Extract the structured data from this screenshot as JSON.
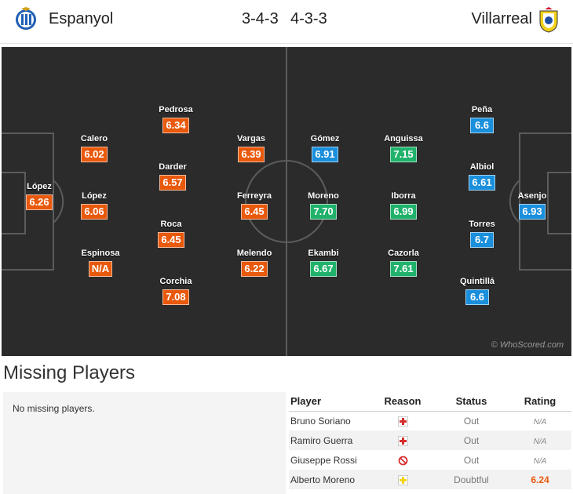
{
  "header": {
    "home_team": "Espanyol",
    "away_team": "Villarreal",
    "home_formation": "3-4-3",
    "away_formation": "4-3-3"
  },
  "pitch": {
    "watermark": "© WhoScored.com",
    "colors": {
      "home_rating": "#e8590c",
      "away_rating": "#1a8fdc",
      "top_rating": "#20b26b",
      "pitch": "#2b2b2b"
    },
    "home_players": [
      {
        "name": "López",
        "rating": "6.26"
      },
      {
        "name": "Calero",
        "rating": "6.02"
      },
      {
        "name": "López",
        "rating": "6.06"
      },
      {
        "name": "Espinosa",
        "rating": "N/A"
      },
      {
        "name": "Pedrosa",
        "rating": "6.34"
      },
      {
        "name": "Darder",
        "rating": "6.57"
      },
      {
        "name": "Roca",
        "rating": "6.45"
      },
      {
        "name": "Corchia",
        "rating": "7.08"
      },
      {
        "name": "Vargas",
        "rating": "6.39"
      },
      {
        "name": "Ferreyra",
        "rating": "6.45"
      },
      {
        "name": "Melendo",
        "rating": "6.22"
      }
    ],
    "away_players": [
      {
        "name": "Gómez",
        "rating": "6.91"
      },
      {
        "name": "Moreno",
        "rating": "7.70"
      },
      {
        "name": "Ekambi",
        "rating": "6.67"
      },
      {
        "name": "Anguissa",
        "rating": "7.15"
      },
      {
        "name": "Iborra",
        "rating": "6.99"
      },
      {
        "name": "Cazorla",
        "rating": "7.61"
      },
      {
        "name": "Peña",
        "rating": "6.6"
      },
      {
        "name": "Albiol",
        "rating": "6.61"
      },
      {
        "name": "Torres",
        "rating": "6.7"
      },
      {
        "name": "Quintillá",
        "rating": "6.6"
      },
      {
        "name": "Asenjo",
        "rating": "6.93"
      }
    ]
  },
  "missing": {
    "title": "Missing Players",
    "home_text": "No missing players.",
    "columns": [
      "Player",
      "Reason",
      "Status",
      "Rating"
    ],
    "rows": [
      {
        "player": "Bruno Soriano",
        "reason_icon": "injury-icon",
        "status": "Out",
        "rating": "N/A"
      },
      {
        "player": "Ramiro Guerra",
        "reason_icon": "injury-icon",
        "status": "Out",
        "rating": "N/A"
      },
      {
        "player": "Giuseppe Rossi",
        "reason_icon": "banned-icon",
        "status": "Out",
        "rating": "N/A"
      },
      {
        "player": "Alberto Moreno",
        "reason_icon": "doubtful-icon",
        "status": "Doubtful",
        "rating": "6.24"
      }
    ]
  }
}
